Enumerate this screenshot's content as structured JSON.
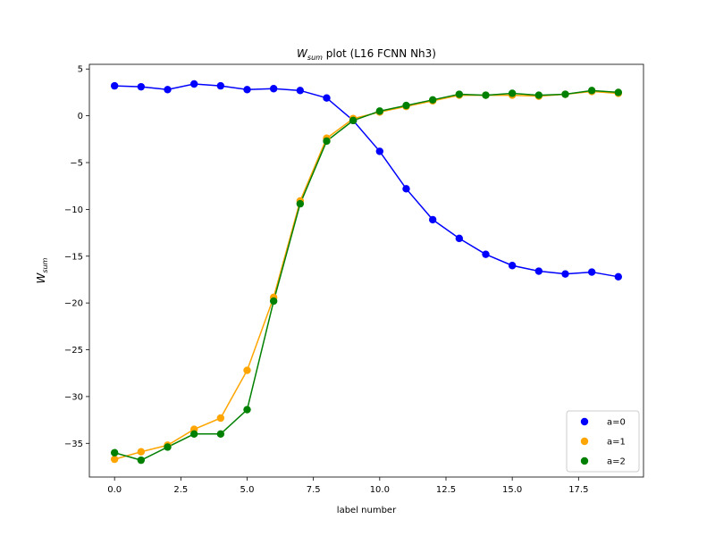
{
  "chart_data": {
    "type": "line",
    "title": {
      "main": "W",
      "sub": "sum",
      "rest": " plot (L16 FCNN Nh3)"
    },
    "xlabel": "label number",
    "ylabel": {
      "main": "W",
      "sub": "sum"
    },
    "xlim": [
      -0.95,
      19.95
    ],
    "ylim": [
      -38.6,
      5.5
    ],
    "xticks": [
      0.0,
      2.5,
      5.0,
      7.5,
      10.0,
      12.5,
      15.0,
      17.5
    ],
    "xtick_labels": [
      "0.0",
      "2.5",
      "5.0",
      "7.5",
      "10.0",
      "12.5",
      "15.0",
      "17.5"
    ],
    "yticks": [
      5,
      0,
      -5,
      -10,
      -15,
      -20,
      -25,
      -30,
      -35
    ],
    "ytick_labels": [
      "5",
      "0",
      "−5",
      "−10",
      "−15",
      "−20",
      "−25",
      "−30",
      "−35"
    ],
    "legend_position": "lower-right",
    "x": [
      0,
      1,
      2,
      3,
      4,
      5,
      6,
      7,
      8,
      9,
      10,
      11,
      12,
      13,
      14,
      15,
      16,
      17,
      18,
      19
    ],
    "series": [
      {
        "name": "a=0",
        "color": "#0000ff",
        "values": [
          3.2,
          3.1,
          2.8,
          3.4,
          3.2,
          2.8,
          2.9,
          2.7,
          1.9,
          -0.5,
          -3.8,
          -7.8,
          -11.1,
          -13.1,
          -14.8,
          -16.0,
          -16.6,
          -16.9,
          -16.7,
          -17.2
        ]
      },
      {
        "name": "a=1",
        "color": "#ffa500",
        "values": [
          -36.7,
          -35.9,
          -35.2,
          -33.5,
          -32.3,
          -27.2,
          -19.4,
          -9.1,
          -2.4,
          -0.3,
          0.4,
          1.0,
          1.6,
          2.2,
          2.2,
          2.2,
          2.1,
          2.3,
          2.6,
          2.4
        ]
      },
      {
        "name": "a=2",
        "color": "#008000",
        "values": [
          -36.0,
          -36.8,
          -35.4,
          -34.0,
          -34.0,
          -31.4,
          -19.8,
          -9.4,
          -2.7,
          -0.5,
          0.5,
          1.1,
          1.7,
          2.3,
          2.2,
          2.4,
          2.2,
          2.3,
          2.7,
          2.5
        ]
      }
    ]
  }
}
